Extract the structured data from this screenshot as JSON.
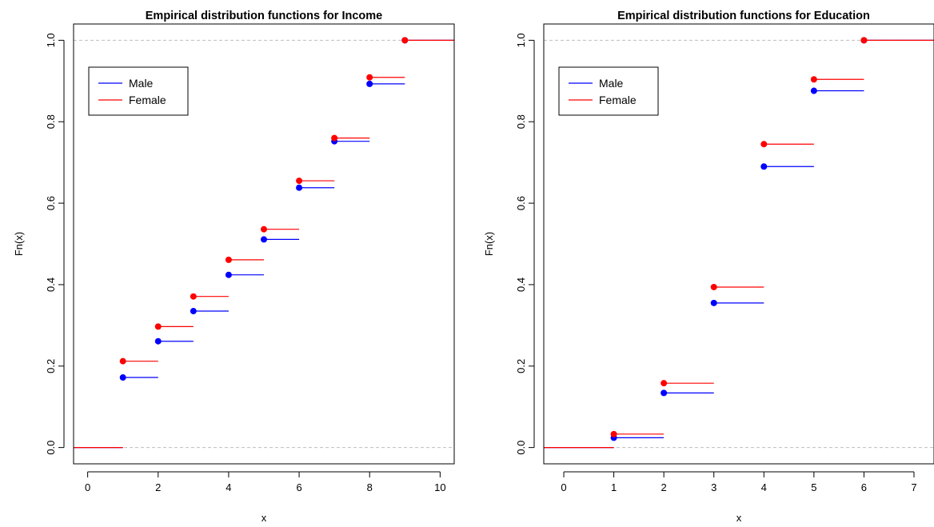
{
  "colors": {
    "male": "#0000ff",
    "female": "#ff0000",
    "reference": "#bebebe",
    "axis": "#000000"
  },
  "chart_data": [
    {
      "type": "step",
      "title": "Empirical distribution functions for Income",
      "xlabel": "x",
      "ylabel": "Fn(x)",
      "xlim": [
        -0.4,
        10.4
      ],
      "ylim": [
        -0.04,
        1.04
      ],
      "xticks": [
        0,
        2,
        4,
        6,
        8,
        10
      ],
      "xtick_labels": [
        "0",
        "2",
        "4",
        "6",
        "8",
        "10"
      ],
      "yticks": [
        0,
        0.2,
        0.4,
        0.6,
        0.8,
        1
      ],
      "ytick_labels": [
        "0.0",
        "0.2",
        "0.4",
        "0.6",
        "0.8",
        "1.0"
      ],
      "reference_lines": [
        0,
        1
      ],
      "legend_position": "top-left",
      "series": [
        {
          "name": "Male",
          "color": "#0000ff",
          "x": [
            1,
            2,
            3,
            4,
            5,
            6,
            7,
            8,
            9
          ],
          "y": [
            0.172,
            0.261,
            0.335,
            0.424,
            0.511,
            0.638,
            0.752,
            0.893,
            1.0
          ]
        },
        {
          "name": "Female",
          "color": "#ff0000",
          "x": [
            1,
            2,
            3,
            4,
            5,
            6,
            7,
            8,
            9
          ],
          "y": [
            0.212,
            0.297,
            0.371,
            0.461,
            0.536,
            0.655,
            0.76,
            0.909,
            1.0
          ]
        }
      ]
    },
    {
      "type": "step",
      "title": "Empirical distribution functions for Education",
      "xlabel": "x",
      "ylabel": "Fn(x)",
      "xlim": [
        -0.4,
        7.4
      ],
      "ylim": [
        -0.04,
        1.04
      ],
      "xticks": [
        0,
        1,
        2,
        3,
        4,
        5,
        6,
        7
      ],
      "xtick_labels": [
        "0",
        "1",
        "2",
        "3",
        "4",
        "5",
        "6",
        "7"
      ],
      "yticks": [
        0,
        0.2,
        0.4,
        0.6,
        0.8,
        1
      ],
      "ytick_labels": [
        "0.0",
        "0.2",
        "0.4",
        "0.6",
        "0.8",
        "1.0"
      ],
      "reference_lines": [
        0,
        1
      ],
      "legend_position": "top-left",
      "series": [
        {
          "name": "Male",
          "color": "#0000ff",
          "x": [
            1,
            2,
            3,
            4,
            5,
            6
          ],
          "y": [
            0.024,
            0.134,
            0.355,
            0.69,
            0.876,
            1.0
          ]
        },
        {
          "name": "Female",
          "color": "#ff0000",
          "x": [
            1,
            2,
            3,
            4,
            5,
            6
          ],
          "y": [
            0.033,
            0.158,
            0.394,
            0.745,
            0.904,
            1.0
          ]
        }
      ]
    }
  ]
}
